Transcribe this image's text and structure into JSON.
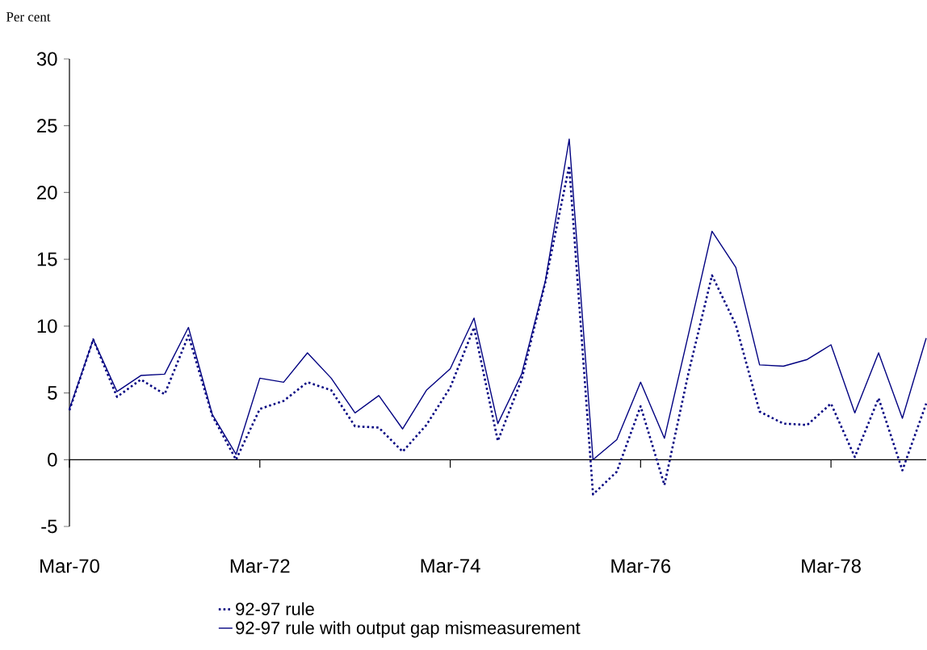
{
  "chart_data": {
    "type": "line",
    "ylabel": "Per cent",
    "categories": [
      "Mar-70",
      null,
      null,
      null,
      null,
      null,
      null,
      null,
      "Mar-72",
      null,
      null,
      null,
      null,
      null,
      null,
      null,
      "Mar-74",
      null,
      null,
      null,
      null,
      null,
      null,
      null,
      "Mar-76",
      null,
      null,
      null,
      null,
      null,
      null,
      null,
      "Mar-78",
      null,
      null,
      null,
      null
    ],
    "ylim": [
      -5,
      30
    ],
    "yticks": [
      -5,
      0,
      5,
      10,
      15,
      20,
      25,
      30
    ],
    "legend": "bottom",
    "grid": false,
    "ref_lines": [
      {
        "axis": "y",
        "value": 0,
        "color": "#000000",
        "line_style": "solid"
      }
    ],
    "marker": "none",
    "series": [
      {
        "name": "92-97 rule",
        "color": "#000080",
        "line_style": "dotted",
        "values": [
          3.7,
          9.0,
          4.7,
          6.0,
          4.9,
          9.3,
          3.3,
          0.0,
          3.8,
          4.4,
          5.8,
          5.2,
          2.5,
          2.4,
          0.6,
          2.6,
          5.4,
          9.9,
          1.4,
          6.0,
          13.3,
          22.0,
          -2.6,
          -0.9,
          4.0,
          -1.9,
          6.4,
          13.8,
          10.1,
          3.6,
          2.7,
          2.6,
          4.2,
          0.2,
          4.6,
          -0.8,
          4.2
        ]
      },
      {
        "name": "92-97 rule with output gap mismeasurement",
        "color": "#000080",
        "line_style": "solid",
        "values": [
          3.8,
          9.0,
          5.1,
          6.3,
          6.4,
          9.9,
          3.4,
          0.4,
          6.1,
          5.8,
          8.0,
          6.1,
          3.5,
          4.8,
          2.3,
          5.2,
          6.8,
          10.6,
          2.7,
          6.4,
          13.4,
          24.0,
          0.0,
          1.5,
          5.8,
          1.6,
          9.3,
          17.1,
          14.4,
          7.1,
          7.0,
          7.5,
          8.6,
          3.5,
          8.0,
          3.1,
          9.1
        ]
      }
    ]
  }
}
